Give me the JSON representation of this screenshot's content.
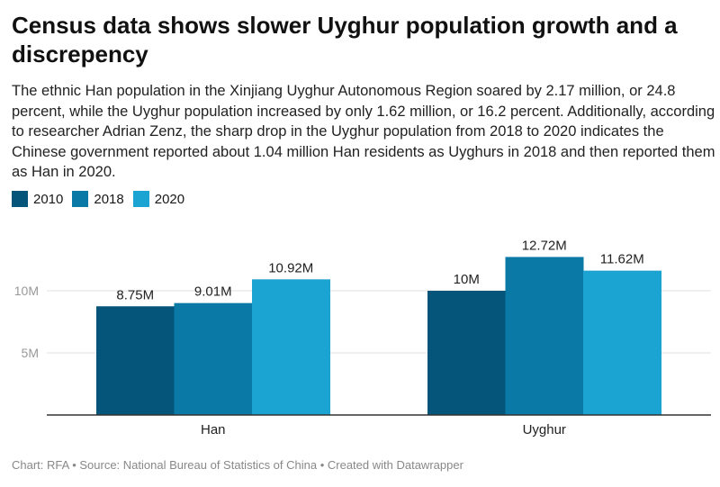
{
  "title": "Census data shows slower Uyghur population growth and a discrepency",
  "description": "The ethnic Han population in the Xinjiang Uyghur Autonomous Region soared by 2.17 million, or 24.8 percent, while the Uyghur population increased by only 1.62 million, or 16.2 percent. Additionally, according to researcher Adrian Zenz, the sharp drop in the Uyghur population from 2018 to 2020 indicates the Chinese government reported about 1.04 million Han residents as Uyghurs in 2018 and then reported them as Han in 2020.",
  "footer": "Chart: RFA • Source: National Bureau of Statistics of China • Created with Datawrapper",
  "chart_data": {
    "type": "bar",
    "categories": [
      "Han",
      "Uyghur"
    ],
    "series": [
      {
        "name": "2010",
        "color": "#05557a",
        "values": [
          8.75,
          10
        ],
        "labels": [
          "8.75M",
          "10M"
        ]
      },
      {
        "name": "2018",
        "color": "#0a79a6",
        "values": [
          9.01,
          12.72
        ],
        "labels": [
          "9.01M",
          "12.72M"
        ]
      },
      {
        "name": "2020",
        "color": "#1ba3d1",
        "values": [
          10.92,
          11.62
        ],
        "labels": [
          "10.92M",
          "11.62M"
        ]
      }
    ],
    "yticks": [
      {
        "value": 5,
        "label": "5M"
      },
      {
        "value": 10,
        "label": "10M"
      }
    ],
    "ylim": [
      0,
      14
    ],
    "grid": true,
    "legend": "top-left",
    "unit": "million"
  }
}
